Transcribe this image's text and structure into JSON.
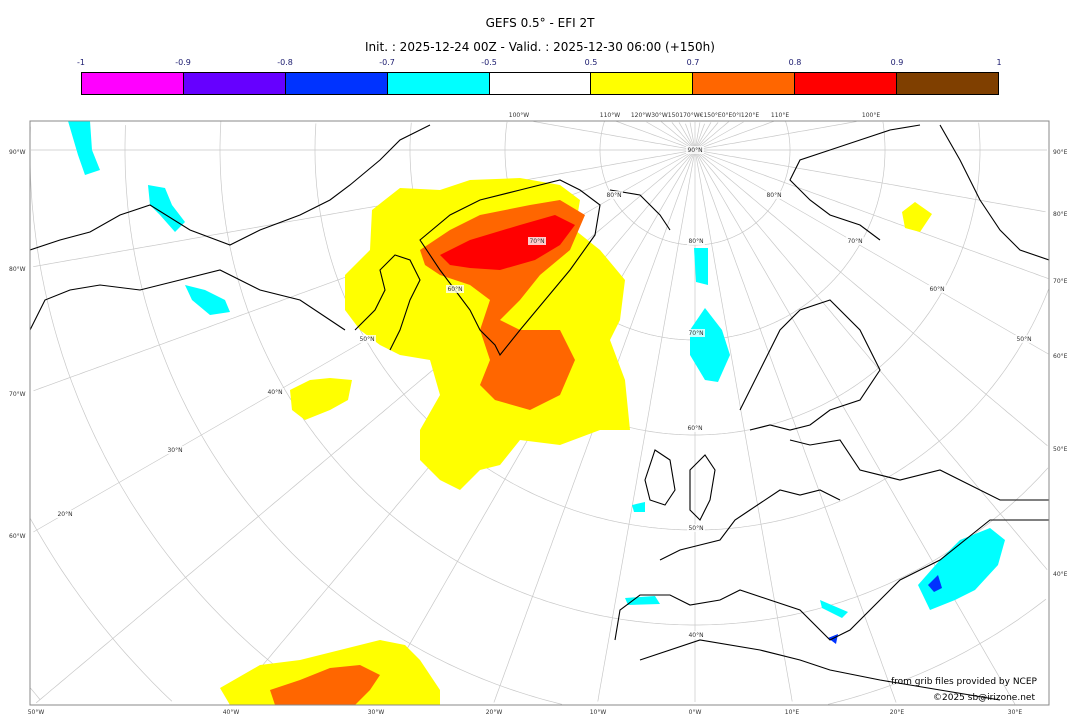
{
  "title": "GEFS 0.5° - EFI 2T",
  "subtitle": "Init. : 2025-12-24 00Z - Valid. : 2025-12-30 06:00 (+150h)",
  "colorbar": {
    "ticks": [
      "-1",
      "-0.9",
      "-0.8",
      "-0.7",
      "-0.5",
      "0.5",
      "0.7",
      "0.8",
      "0.9",
      "1"
    ],
    "colors": [
      "#ff00ff",
      "#6600ff",
      "#0033ff",
      "#00ffff",
      "#ffffff",
      "#ffff00",
      "#ff6600",
      "#ff0000",
      "#7f3f00"
    ]
  },
  "map": {
    "left_labels": [
      "90°W",
      "80°W",
      "70°W",
      "60°W"
    ],
    "right_labels": [
      "90°E",
      "80°E",
      "70°E",
      "60°E",
      "50°E",
      "40°E"
    ],
    "bottom_labels": [
      "50°W",
      "40°W",
      "30°W",
      "20°W",
      "10°W",
      "0°W",
      "10°E",
      "20°E",
      "30°E"
    ],
    "top_labels": [
      "100°W",
      "110°W",
      "120°W30°W150170°W€150°E0°E0°I120°E",
      "110°E",
      "100°E"
    ],
    "lat_labels": [
      "90°N",
      "80°N",
      "70°N",
      "60°N",
      "50°N",
      "40°N",
      "30°N",
      "20°N",
      "80°N",
      "70°N",
      "60°N",
      "50°N",
      "40°N",
      "80°N",
      "70°N",
      "60°N",
      "50°N"
    ],
    "gridline_color": "#c8c8c8",
    "coastline_color": "#000000"
  },
  "credits": {
    "source": "from grib files provided by NCEP",
    "copyright": "©2025 sb@irizone.net"
  }
}
